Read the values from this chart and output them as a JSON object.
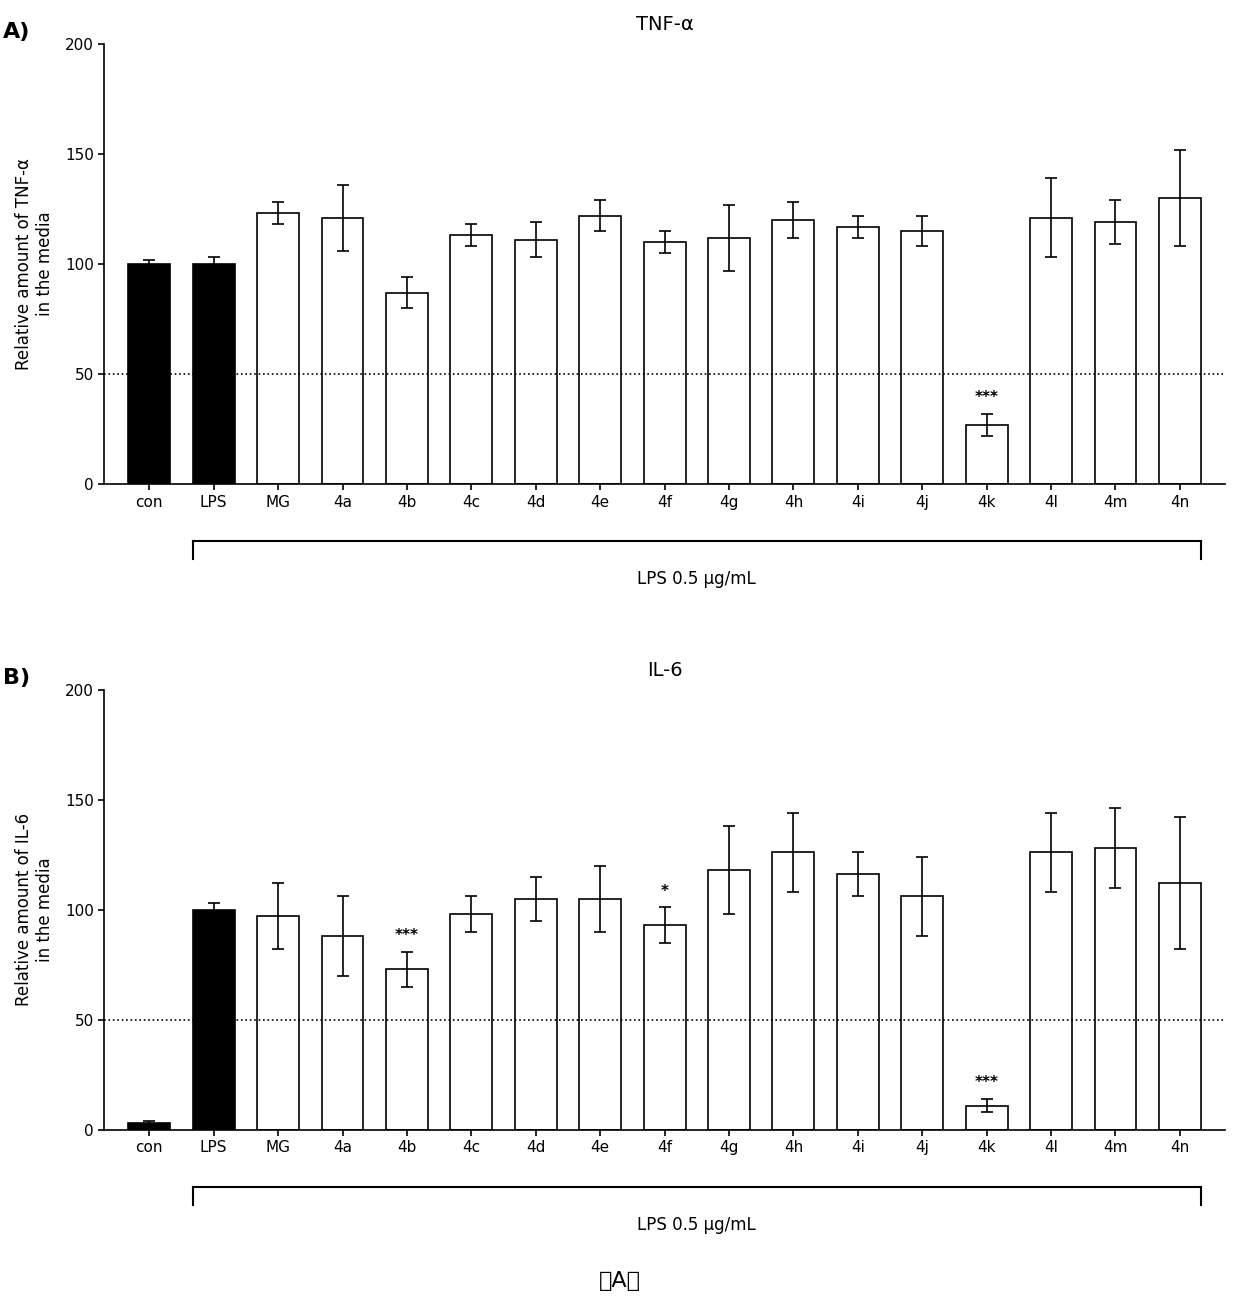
{
  "panel_A": {
    "title": "TNF-α",
    "ylabel": "Relative amount of TNF-α\nin the media",
    "categories": [
      "con",
      "LPS",
      "MG",
      "4a",
      "4b",
      "4c",
      "4d",
      "4e",
      "4f",
      "4g",
      "4h",
      "4i",
      "4j",
      "4k",
      "4l",
      "4m",
      "4n"
    ],
    "values": [
      100,
      100,
      123,
      121,
      87,
      113,
      111,
      122,
      110,
      112,
      120,
      117,
      115,
      27,
      121,
      119,
      130
    ],
    "errors": [
      2,
      3,
      5,
      15,
      7,
      5,
      8,
      7,
      5,
      15,
      8,
      5,
      7,
      5,
      18,
      10,
      22
    ],
    "bar_colors": [
      "black",
      "black",
      "white",
      "white",
      "white",
      "white",
      "white",
      "white",
      "white",
      "white",
      "white",
      "white",
      "white",
      "white",
      "white",
      "white",
      "white"
    ],
    "significance": {
      "13": "***"
    },
    "ylim": [
      0,
      200
    ],
    "yticks": [
      0,
      50,
      100,
      150,
      200
    ],
    "hline": 50
  },
  "panel_B": {
    "title": "IL-6",
    "ylabel": "Relative amount of IL-6\nin the media",
    "categories": [
      "con",
      "LPS",
      "MG",
      "4a",
      "4b",
      "4c",
      "4d",
      "4e",
      "4f",
      "4g",
      "4h",
      "4i",
      "4j",
      "4k",
      "4l",
      "4m",
      "4n"
    ],
    "values": [
      3,
      100,
      97,
      88,
      73,
      98,
      105,
      105,
      93,
      118,
      126,
      116,
      106,
      11,
      126,
      128,
      112
    ],
    "errors": [
      1,
      3,
      15,
      18,
      8,
      8,
      10,
      15,
      8,
      20,
      18,
      10,
      18,
      3,
      18,
      18,
      30
    ],
    "bar_colors": [
      "black",
      "black",
      "white",
      "white",
      "white",
      "white",
      "white",
      "white",
      "white",
      "white",
      "white",
      "white",
      "white",
      "white",
      "white",
      "white",
      "white"
    ],
    "significance": {
      "4": "***",
      "8": "*",
      "13": "***"
    },
    "ylim": [
      0,
      200
    ],
    "yticks": [
      0,
      50,
      100,
      150,
      200
    ],
    "hline": 50
  },
  "xlabel_bracket": "LPS 0.5 μg/mL",
  "footnote": "（A）",
  "background_color": "#ffffff",
  "panel_label_A": "A)",
  "panel_label_B": "B)"
}
